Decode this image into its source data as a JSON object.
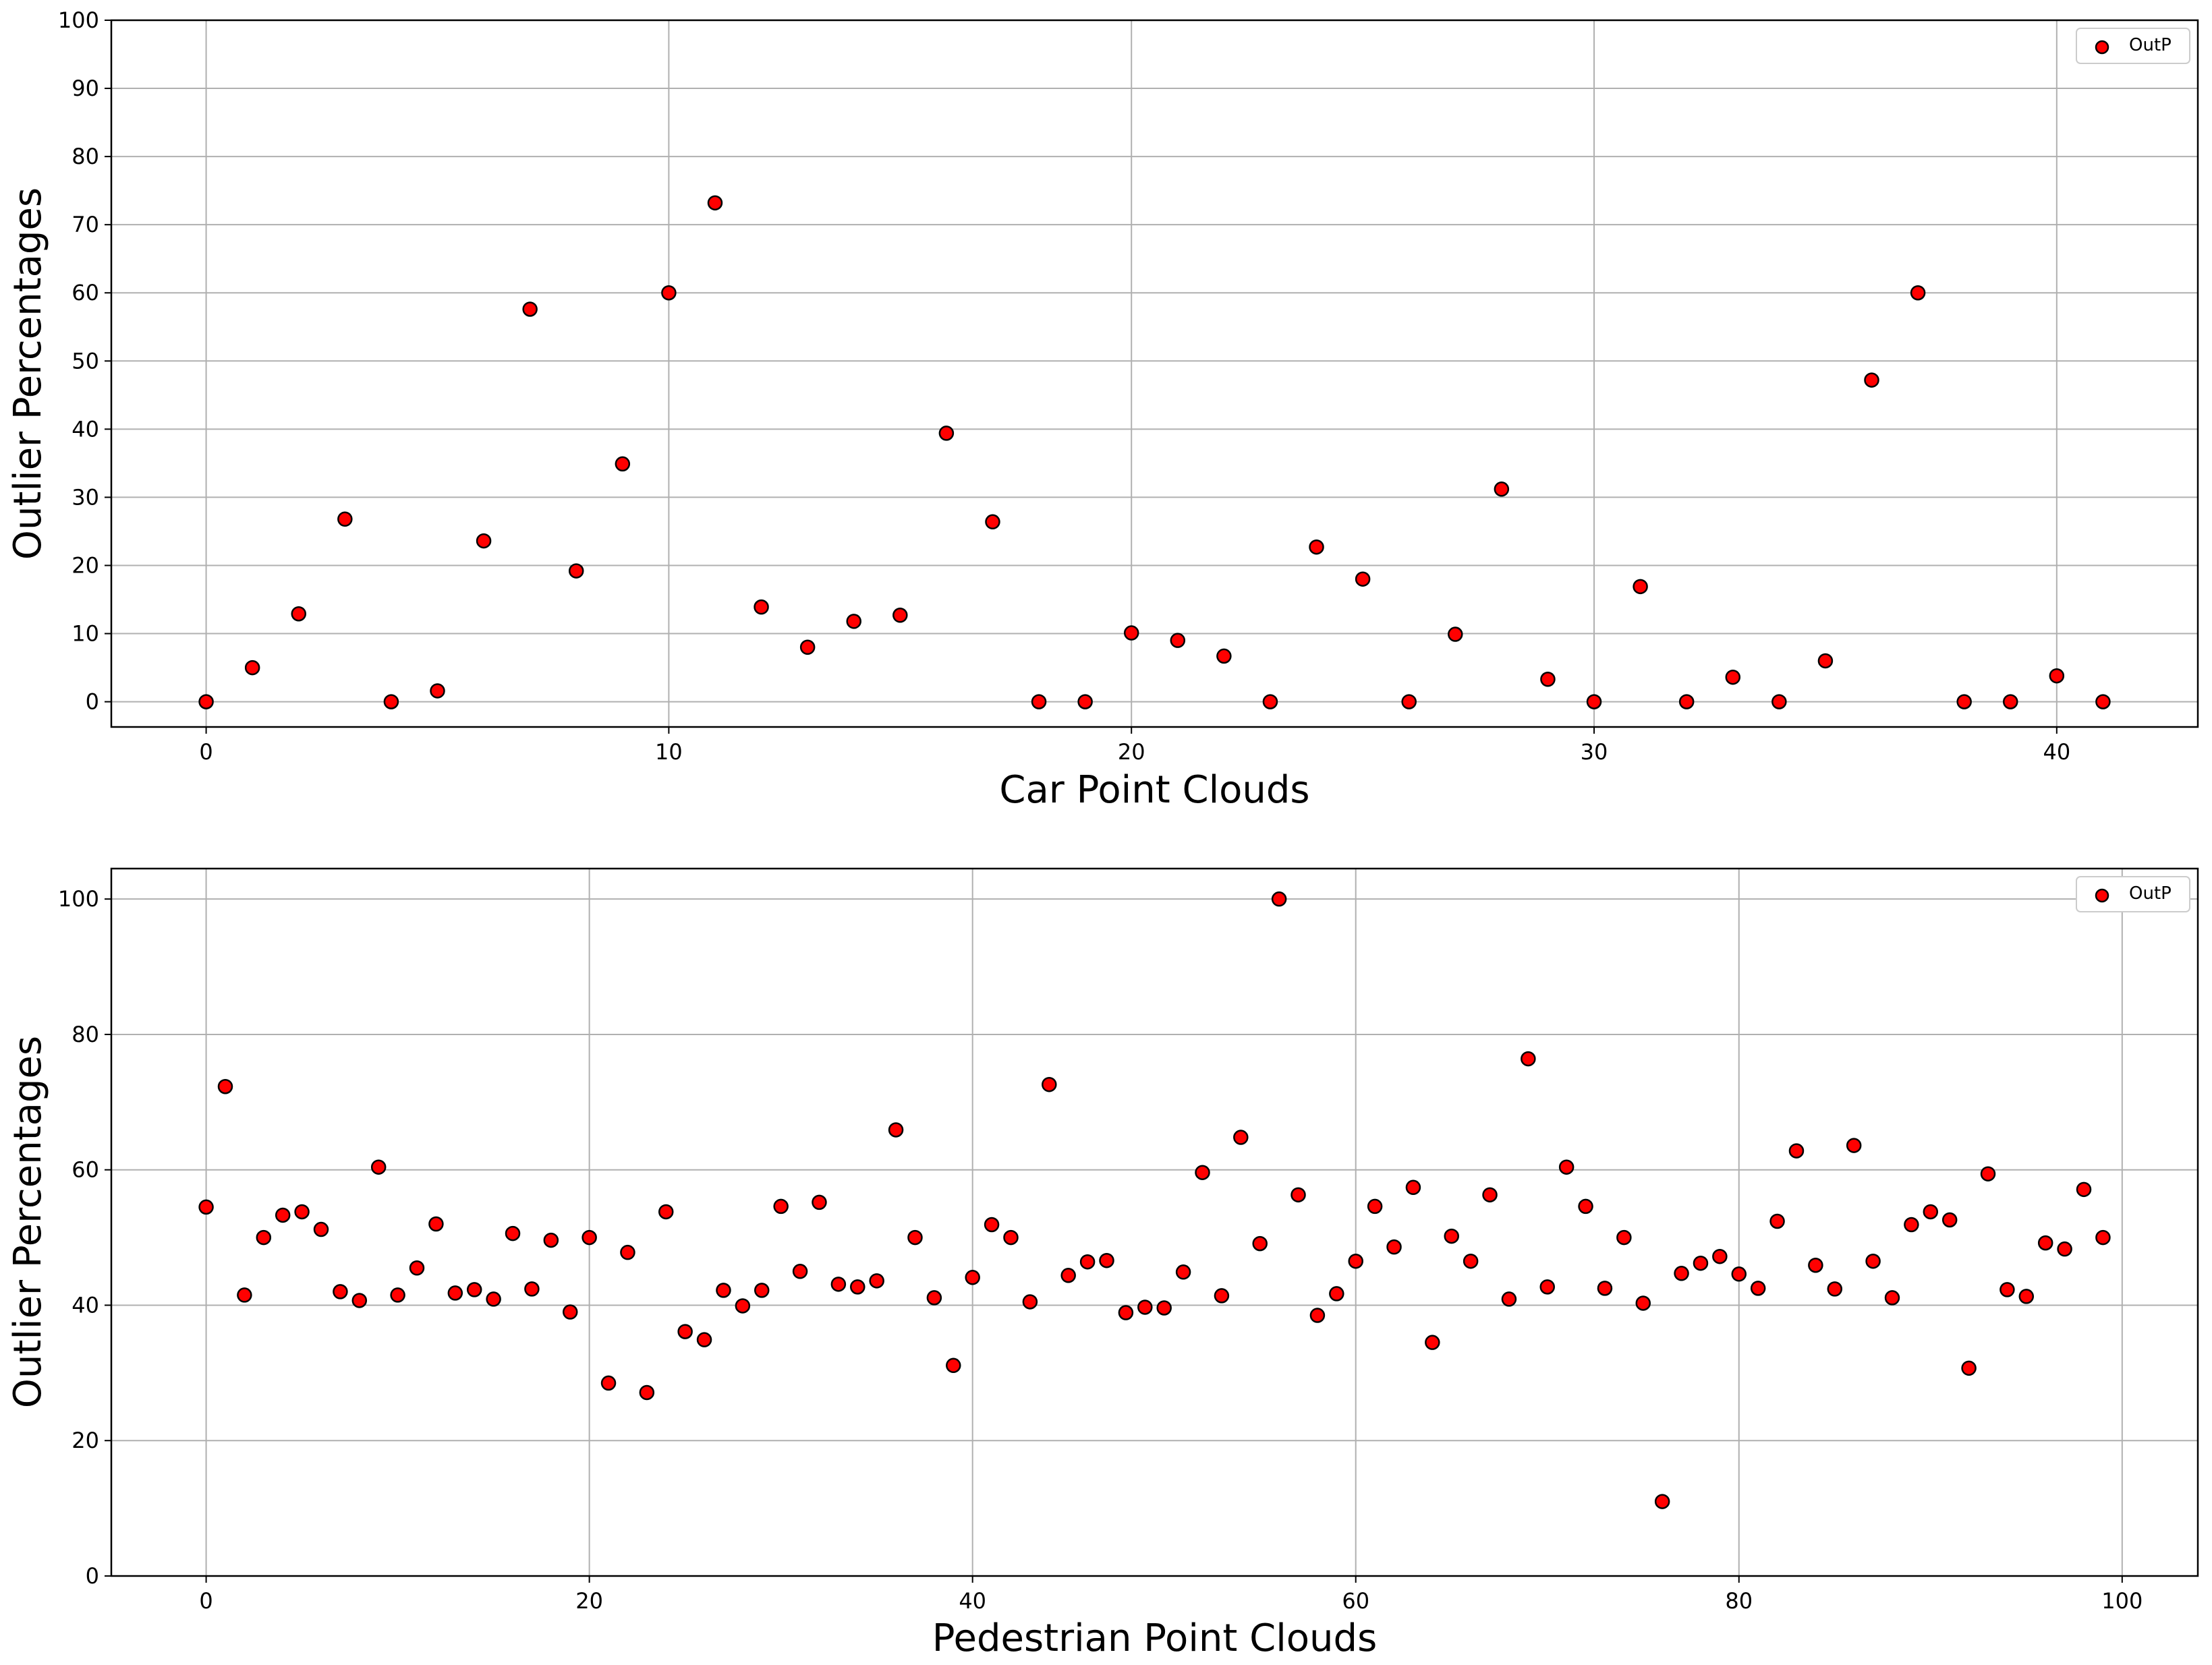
{
  "chart_data": [
    {
      "type": "scatter",
      "xlabel": "Car Point Clouds",
      "ylabel": "Outlier Percentages",
      "xlim": [
        -2.05,
        43.05
      ],
      "ylim": [
        -3.7,
        100
      ],
      "xticks": [
        0,
        10,
        20,
        30,
        40
      ],
      "yticks": [
        0,
        10,
        20,
        30,
        40,
        50,
        60,
        70,
        80,
        90,
        100
      ],
      "grid": true,
      "legend_position": "top-right",
      "series": [
        {
          "name": "OutP",
          "color": "#ff0000",
          "x": [
            0,
            1,
            2,
            3,
            4,
            5,
            6,
            7,
            8,
            9,
            10,
            11,
            12,
            13,
            14,
            15,
            16,
            17,
            18,
            19,
            20,
            21,
            22,
            23,
            24,
            25,
            26,
            27,
            28,
            29,
            30,
            31,
            32,
            33,
            34,
            35,
            36,
            37,
            38,
            39,
            40,
            41
          ],
          "y": [
            0,
            5,
            12.9,
            26.8,
            0,
            1.6,
            23.6,
            57.6,
            19.2,
            34.9,
            60,
            73.2,
            13.9,
            8,
            11.8,
            12.7,
            39.4,
            26.4,
            0,
            0,
            10.1,
            9,
            6.7,
            0,
            22.7,
            18,
            0,
            9.9,
            31.2,
            3.3,
            0,
            16.9,
            0,
            3.6,
            0,
            6,
            47.2,
            60,
            0,
            0,
            3.8,
            0
          ]
        }
      ]
    },
    {
      "type": "scatter",
      "xlabel": "Pedestrian Point Clouds",
      "ylabel": "Outlier Percentages",
      "xlim": [
        -4.95,
        103.95
      ],
      "ylim": [
        0,
        104.5
      ],
      "xticks": [
        0,
        20,
        40,
        60,
        80,
        100
      ],
      "yticks": [
        0,
        20,
        40,
        60,
        80,
        100
      ],
      "grid": true,
      "legend_position": "top-right",
      "series": [
        {
          "name": "OutP",
          "color": "#ff0000",
          "x": [
            0,
            1,
            2,
            3,
            4,
            5,
            6,
            7,
            8,
            9,
            10,
            11,
            12,
            13,
            14,
            15,
            16,
            17,
            18,
            19,
            20,
            21,
            22,
            23,
            24,
            25,
            26,
            27,
            28,
            29,
            30,
            31,
            32,
            33,
            34,
            35,
            36,
            37,
            38,
            39,
            40,
            41,
            42,
            43,
            44,
            45,
            46,
            47,
            48,
            49,
            50,
            51,
            52,
            53,
            54,
            55,
            56,
            57,
            58,
            59,
            60,
            61,
            62,
            63,
            64,
            65,
            66,
            67,
            68,
            69,
            70,
            71,
            72,
            73,
            74,
            75,
            76,
            77,
            78,
            79,
            80,
            81,
            82,
            83,
            84,
            85,
            86,
            87,
            88,
            89,
            90,
            91,
            92,
            93,
            94,
            95,
            96,
            97,
            98,
            99
          ],
          "y": [
            54.5,
            72.3,
            41.5,
            50,
            53.3,
            53.8,
            51.2,
            42,
            40.7,
            60.4,
            41.5,
            45.5,
            52,
            41.8,
            42.3,
            40.9,
            50.6,
            42.4,
            49.6,
            39,
            50,
            28.5,
            47.8,
            27.1,
            53.8,
            36.1,
            34.9,
            42.2,
            39.9,
            42.2,
            54.6,
            45,
            55.2,
            43.1,
            42.7,
            43.6,
            65.9,
            50,
            41.1,
            31.1,
            44.1,
            51.9,
            50,
            40.5,
            72.6,
            44.4,
            46.4,
            46.6,
            38.9,
            39.7,
            39.6,
            44.9,
            59.6,
            41.4,
            64.8,
            49.1,
            100,
            56.3,
            38.5,
            41.7,
            46.5,
            54.6,
            48.6,
            57.4,
            34.5,
            50.2,
            46.5,
            56.3,
            40.9,
            76.4,
            42.7,
            60.4,
            54.6,
            42.5,
            50,
            40.3,
            11,
            44.7,
            46.2,
            47.2,
            44.6,
            42.5,
            52.4,
            62.8,
            45.9,
            42.4,
            63.6,
            46.5,
            41.1,
            51.9,
            53.8,
            52.6,
            30.7,
            59.4,
            42.3,
            41.3,
            49.2,
            48.3,
            57.1,
            50
          ]
        }
      ]
    }
  ]
}
